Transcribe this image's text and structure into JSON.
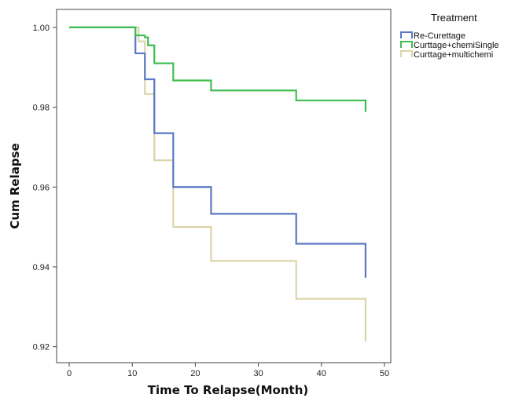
{
  "chart_data": {
    "type": "line",
    "xlabel": "Time To Relapse(Month)",
    "ylabel": "Cum Relapse",
    "xlim": [
      -2,
      51
    ],
    "ylim": [
      0.916,
      1.0045
    ],
    "xticks": [
      0,
      10,
      20,
      30,
      40,
      50
    ],
    "yticks": [
      0.92,
      0.94,
      0.96,
      0.98,
      1.0
    ],
    "ytick_labels": [
      "0.92",
      "0.94",
      "0.96",
      "0.98",
      "1.00"
    ],
    "grid": false,
    "step": true,
    "legend": {
      "title": "Treatment",
      "placement": "top-right-outside"
    },
    "series": [
      {
        "name": "Re-Curettage",
        "color": "#5a78c4",
        "x": [
          0,
          10.5,
          12,
          13.5,
          16.5,
          22.5,
          36,
          47
        ],
        "y": [
          1.0,
          0.9935,
          0.987,
          0.9735,
          0.96,
          0.9533,
          0.9458,
          0.9373
        ]
      },
      {
        "name": "Curttage+chemiSingle",
        "color": "#3fbf4f",
        "x": [
          0,
          10.5,
          12,
          12.5,
          13.5,
          16.5,
          22.5,
          36,
          47
        ],
        "y": [
          1.0,
          0.998,
          0.9975,
          0.9955,
          0.991,
          0.9867,
          0.9842,
          0.9817,
          0.9788
        ]
      },
      {
        "name": "Curttage+multichemi",
        "color": "#dcd4a8",
        "x": [
          0,
          11,
          12,
          13.5,
          16.5,
          22.5,
          36,
          47
        ],
        "y": [
          1.0,
          0.9965,
          0.9833,
          0.9667,
          0.95,
          0.9415,
          0.932,
          0.9213
        ]
      }
    ]
  }
}
